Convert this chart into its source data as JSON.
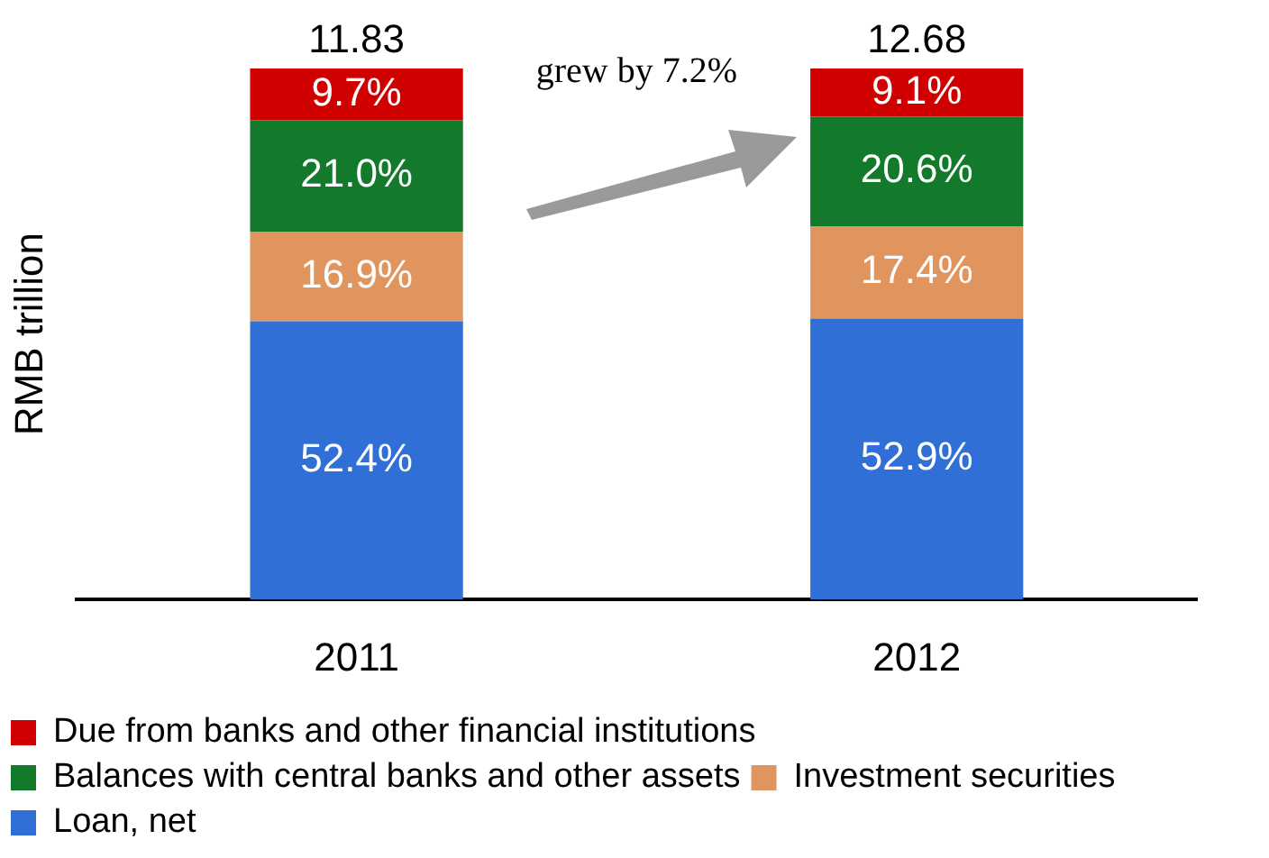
{
  "chart_data": {
    "type": "bar",
    "stacked": true,
    "ylabel": "RMB trillion",
    "categories": [
      "2011",
      "2012"
    ],
    "series": [
      {
        "name": "Loan, net",
        "color": "#2f6fd6",
        "values": [
          52.4,
          52.9
        ],
        "value_labels": [
          "52.4%",
          "52.9%"
        ]
      },
      {
        "name": "Investment securities",
        "color": "#e0955f",
        "values": [
          16.9,
          17.4
        ],
        "value_labels": [
          "16.9%",
          "17.4%"
        ]
      },
      {
        "name": "Balances with central banks and other assets",
        "color": "#127a2a",
        "values": [
          21.0,
          20.6
        ],
        "value_labels": [
          "21.0%",
          "20.6%"
        ]
      },
      {
        "name": "Due from banks and other financial institutions",
        "color": "#d00000",
        "values": [
          9.7,
          9.1
        ],
        "value_labels": [
          "9.7%",
          "9.1%"
        ]
      }
    ],
    "annotations": [
      "grew by 7.2%",
      {
        "text": "11.83",
        "x": "2011",
        "y": 100
      },
      {
        "text": "12.68",
        "x": "2012",
        "y": 100
      }
    ],
    "legend": "bottom left"
  }
}
